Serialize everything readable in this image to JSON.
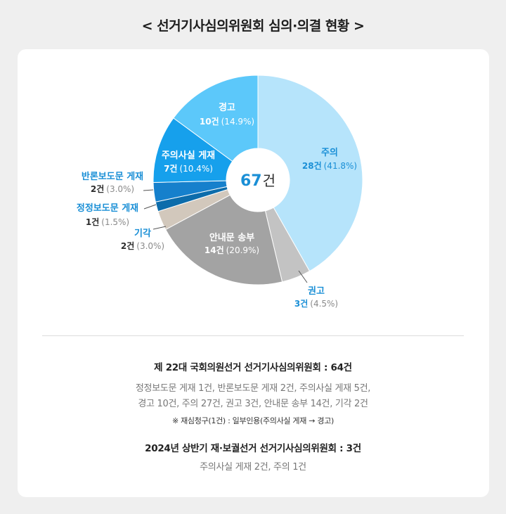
{
  "title": "< 선거기사심의위원회 심의·의결 현황 >",
  "center": {
    "value": "67",
    "unit": "건"
  },
  "colors": {
    "primary": "#1a8fd6",
    "dark": "#2c2c2c",
    "muted": "#8a8a8a"
  },
  "chart_data": {
    "type": "pie",
    "title": "",
    "total": 67,
    "slices": [
      {
        "name": "주의",
        "count": "28건",
        "percent": "(41.8%)",
        "value": 28,
        "color": "#b6e4fb"
      },
      {
        "name": "권고",
        "count": "3건",
        "percent": "(4.5%)",
        "value": 3,
        "color": "#c3c3c3"
      },
      {
        "name": "안내문 송부",
        "count": "14건",
        "percent": "(20.9%)",
        "value": 14,
        "color": "#a3a3a3"
      },
      {
        "name": "기각",
        "count": "2건",
        "percent": "(3.0%)",
        "value": 2,
        "color": "#d2c8bc"
      },
      {
        "name": "정정보도문 게재",
        "count": "1건",
        "percent": "(1.5%)",
        "value": 1,
        "color": "#0c6cab"
      },
      {
        "name": "반론보도문 게재",
        "count": "2건",
        "percent": "(3.0%)",
        "value": 2,
        "color": "#1680cc"
      },
      {
        "name": "주의사실  게재",
        "count": "7건",
        "percent": "(10.4%)",
        "value": 7,
        "color": "#16a0ec"
      },
      {
        "name": "경고",
        "count": "10건",
        "percent": "(14.9%)",
        "value": 10,
        "color": "#5cc8fa"
      }
    ]
  },
  "summary": {
    "heading1": "제 22대 국회의원선거 선거기사심의위원회 : 64건",
    "line1": "정정보도문 게재 1건, 반론보도문 게재 2건, 주의사실 게재 5건,",
    "line2": "경고 10건, 주의 27건, 권고 3건, 안내문 송부 14건, 기각 2건",
    "note": "※ 재심청구(1건) : 일부인용(주의사실 게재  → 경고)",
    "heading2": "2024년 상반기 재·보궐선거 선거기사심의위원회 : 3건",
    "line3": "주의사실 게재 2건, 주의 1건"
  }
}
